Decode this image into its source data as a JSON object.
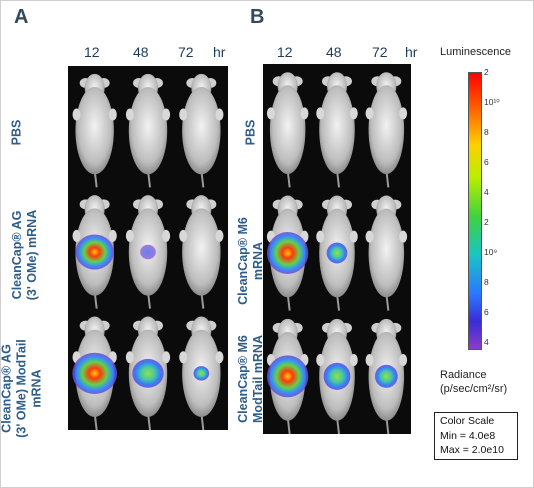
{
  "panels": {
    "a": {
      "letter": "A",
      "hours": [
        "12",
        "48",
        "72"
      ],
      "hr_unit": "hr",
      "rows": [
        {
          "lines": [
            "PBS"
          ]
        },
        {
          "lines": [
            "CleanCap® AG",
            "(3' OMe) mRNA"
          ]
        },
        {
          "lines": [
            "CleanCap® AG",
            "(3' OMe) ModTail",
            "mRNA"
          ]
        }
      ]
    },
    "b": {
      "letter": "B",
      "hours": [
        "12",
        "48",
        "72"
      ],
      "hr_unit": "hr",
      "rows": [
        {
          "lines": [
            "PBS"
          ]
        },
        {
          "lines": [
            "CleanCap® M6",
            "mRNA"
          ]
        },
        {
          "lines": [
            "CleanCap® M6",
            "ModTail mRNA"
          ]
        }
      ]
    }
  },
  "legend": {
    "title": "Luminescence",
    "ticks": [
      "2",
      "10¹⁰",
      "8",
      "6",
      "4",
      "2",
      "10⁹",
      "8",
      "6",
      "4"
    ],
    "radiance_line1": "Radiance",
    "radiance_line2": "(p/sec/cm²/sr)",
    "color_scale_title": "Color Scale",
    "min": "Min = 4.0e8",
    "max": "Max = 2.0e10",
    "colors": {
      "high": "#ff0000",
      "mid": "#3fd23f",
      "low": "#8a3fc8"
    }
  },
  "signals": {
    "a": [
      [
        0,
        0,
        0
      ],
      [
        0.85,
        0.15,
        0
      ],
      [
        1,
        0.7,
        0.35
      ]
    ],
    "b": [
      [
        0,
        0,
        0
      ],
      [
        1,
        0.5,
        0
      ],
      [
        1,
        0.65,
        0.55
      ]
    ]
  }
}
